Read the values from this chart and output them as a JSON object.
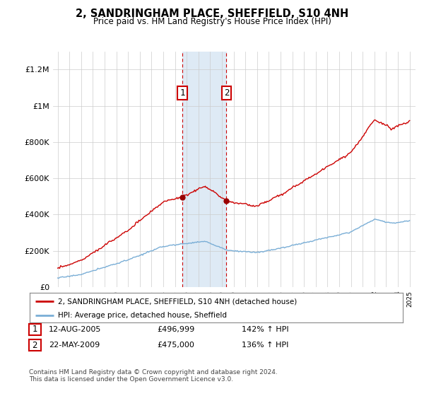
{
  "title": "2, SANDRINGHAM PLACE, SHEFFIELD, S10 4NH",
  "subtitle": "Price paid vs. HM Land Registry's House Price Index (HPI)",
  "ylim": [
    0,
    1300000
  ],
  "yticks": [
    0,
    200000,
    400000,
    600000,
    800000,
    1000000,
    1200000
  ],
  "ytick_labels": [
    "£0",
    "£200K",
    "£400K",
    "£600K",
    "£800K",
    "£1M",
    "£1.2M"
  ],
  "sale1_date": 2005.61,
  "sale1_price": 496999,
  "sale1_label": "1",
  "sale2_date": 2009.38,
  "sale2_price": 475000,
  "sale2_label": "2",
  "hpi_color": "#7aaed6",
  "price_color": "#cc0000",
  "sale_marker_color": "#990000",
  "vline_color": "#cc0000",
  "shade_color": "#deeaf5",
  "legend_label_price": "2, SANDRINGHAM PLACE, SHEFFIELD, S10 4NH (detached house)",
  "legend_label_hpi": "HPI: Average price, detached house, Sheffield",
  "table_row1": [
    "1",
    "12-AUG-2005",
    "£496,999",
    "142% ↑ HPI"
  ],
  "table_row2": [
    "2",
    "22-MAY-2009",
    "£475,000",
    "136% ↑ HPI"
  ],
  "footer": "Contains HM Land Registry data © Crown copyright and database right 2024.\nThis data is licensed under the Open Government Licence v3.0.",
  "background_color": "#ffffff"
}
